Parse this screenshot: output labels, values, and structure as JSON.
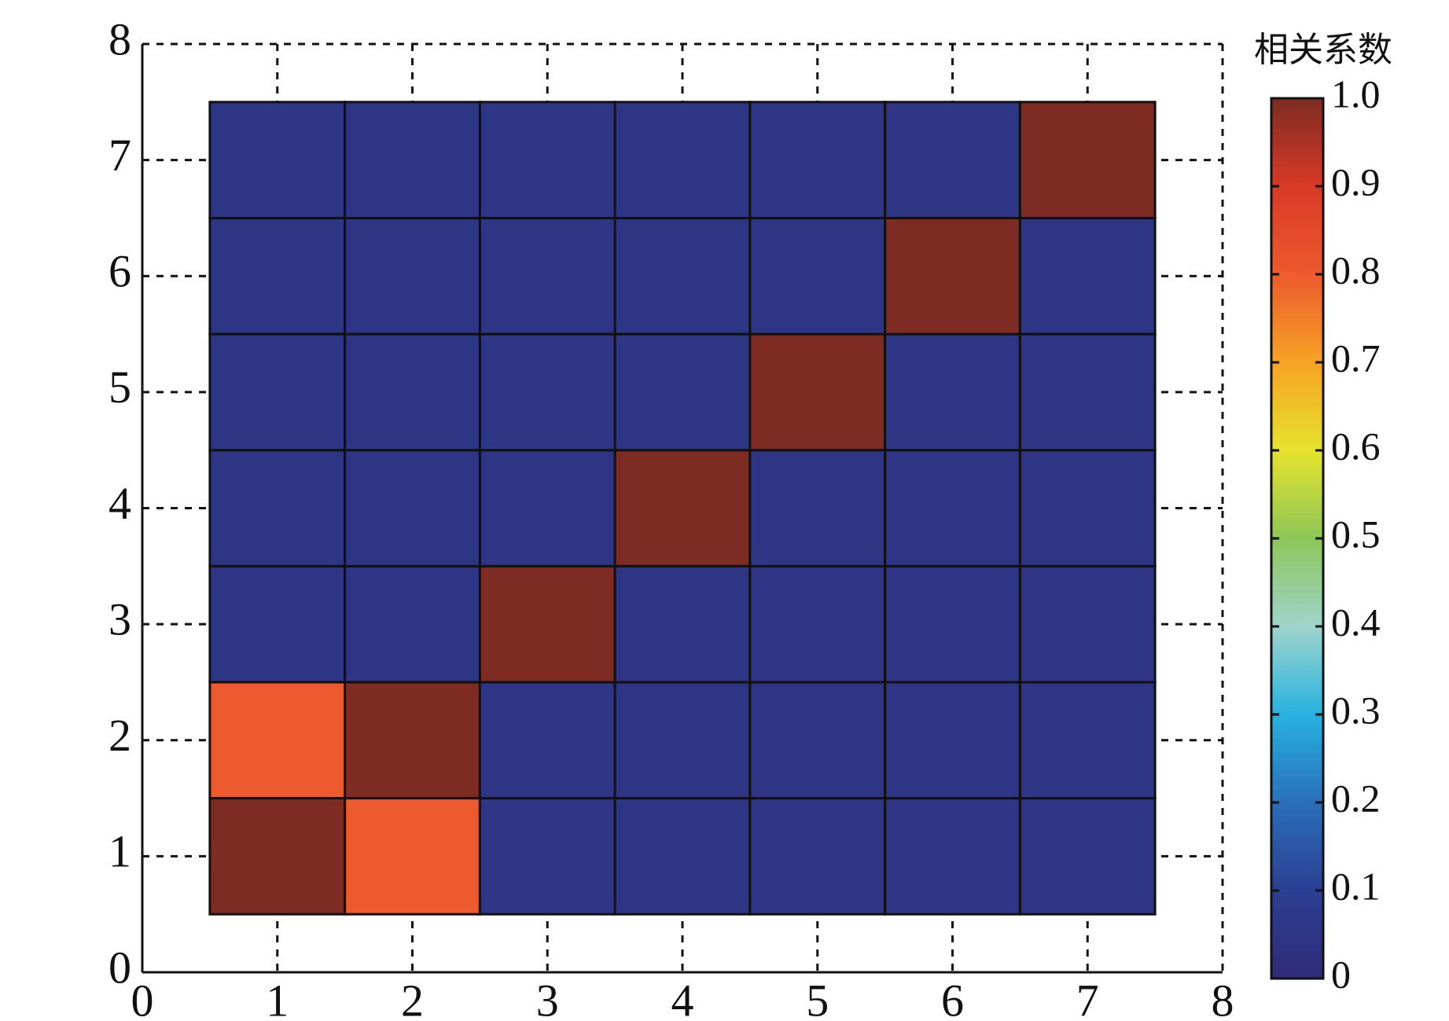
{
  "chart_data": {
    "type": "heatmap",
    "x": [
      1,
      2,
      3,
      4,
      5,
      6,
      7
    ],
    "y": [
      1,
      2,
      3,
      4,
      5,
      6,
      7
    ],
    "values": [
      [
        1,
        0.8,
        0.05,
        0.05,
        0.05,
        0.05,
        0.05
      ],
      [
        0.8,
        1,
        0.05,
        0.05,
        0.05,
        0.05,
        0.05
      ],
      [
        0.05,
        0.05,
        1,
        0.05,
        0.05,
        0.05,
        0.05
      ],
      [
        0.05,
        0.05,
        0.05,
        1,
        0.05,
        0.05,
        0.05
      ],
      [
        0.05,
        0.05,
        0.05,
        0.05,
        1,
        0.05,
        0.05
      ],
      [
        0.05,
        0.05,
        0.05,
        0.05,
        0.05,
        1,
        0.05
      ],
      [
        0.05,
        0.05,
        0.05,
        0.05,
        0.05,
        0.05,
        1
      ]
    ],
    "xlim": [
      0,
      8
    ],
    "xticks": [
      0,
      1,
      2,
      3,
      4,
      5,
      6,
      7,
      8
    ],
    "ylim": [
      0,
      8
    ],
    "yticks": [
      0,
      1,
      2,
      3,
      4,
      5,
      6,
      7,
      8
    ],
    "grid": true,
    "colorbar_title": "相关系数",
    "clim": [
      0,
      1
    ],
    "cticks": [
      0,
      0.1,
      0.2,
      0.3,
      0.4,
      0.5,
      0.6,
      0.7,
      0.8,
      0.9,
      {
        "value": 1,
        "label": "1.0"
      }
    ],
    "colormap": [
      "#2f2b78",
      "#2c3f92",
      "#2a6fb8",
      "#27b2e0",
      "#9ed4cc",
      "#8dc658",
      "#e6e22c",
      "#f6a324",
      "#ec5a2d",
      "#d93a26",
      "#7d2b23"
    ]
  }
}
